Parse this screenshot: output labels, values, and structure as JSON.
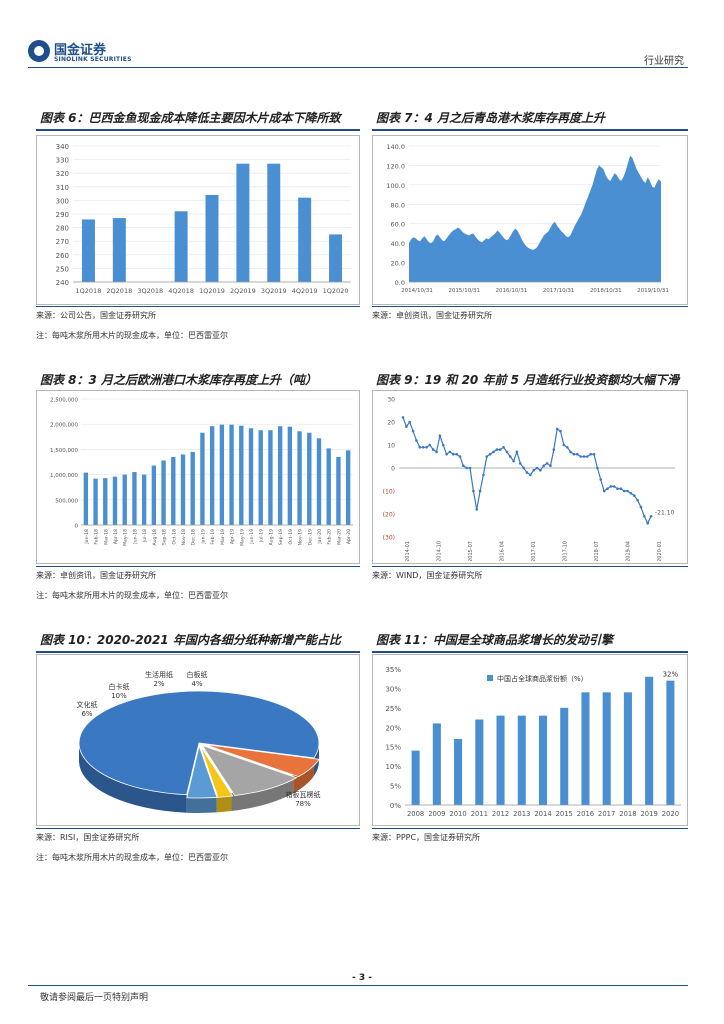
{
  "header": {
    "brand_cn": "国金证券",
    "brand_en": "SINOLINK SECURITIES",
    "section": "行业研究"
  },
  "page_number": "- 3 -",
  "footer": "敬请参阅最后一页特别声明",
  "colors": {
    "bar": "#4a8fd2",
    "accent": "#1f4e8c"
  },
  "panels": {
    "p6": {
      "title": "图表 6：巴西金鱼现金成本降低主要因木片成本下降所致",
      "source": "来源：公司公告，国金证券研究所",
      "note": "注：每吨木浆所用木片的现金成本，单位：巴西雷亚尔"
    },
    "p7": {
      "title": "图表 7：4 月之后青岛港木浆库存再度上升",
      "source": "来源：卓创资讯，国金证券研究所"
    },
    "p8": {
      "title": "图表 8：3 月之后欧洲港口木浆库存再度上升（吨）",
      "source": "来源：卓创资讯，国金证券研究所",
      "note": "注：每吨木浆所用木片的现金成本，单位：巴西雷亚尔"
    },
    "p9": {
      "title": "图表 9：19 和 20 年前 5 月造纸行业投资额均大幅下滑",
      "source": "来源：WIND，国金证券研究所"
    },
    "p10": {
      "title": "图表 10：2020-2021 年国内各细分纸种新增产能占比",
      "source": "来源：RISI，国金证券研究所",
      "note": "注：每吨木浆所用木片的现金成本，单位：巴西雷亚尔"
    },
    "p11": {
      "title": "图表 11：中国是全球商品浆增长的发动引擎",
      "source": "来源：PPPC，国金证券研究所"
    }
  },
  "chart_data": [
    {
      "id": "chart6",
      "type": "bar",
      "categories": [
        "1Q2018",
        "2Q2018",
        "3Q2018",
        "4Q2018",
        "1Q2019",
        "2Q2019",
        "3Q2019",
        "4Q2019",
        "1Q2020"
      ],
      "values": [
        286,
        287,
        null,
        292,
        304,
        327,
        327,
        302,
        275
      ],
      "ylim": [
        240,
        340
      ],
      "yticks": [
        "240",
        "250",
        "260",
        "270",
        "280",
        "290",
        "300",
        "310",
        "320",
        "330",
        "340"
      ]
    },
    {
      "id": "chart7",
      "type": "area",
      "ylim": [
        0,
        140
      ],
      "yticks": [
        "0.0",
        "20.0",
        "40.0",
        "60.0",
        "80.0",
        "100.0",
        "120.0",
        "140.0"
      ],
      "xlabels": [
        "2014/10/31",
        "2015/10/31",
        "2016/10/31",
        "2017/10/31",
        "2018/10/31",
        "2019/10/31"
      ],
      "values": [
        40,
        44,
        46,
        45,
        43,
        42,
        45,
        47,
        44,
        41,
        40,
        42,
        47,
        49,
        46,
        43,
        42,
        45,
        48,
        51,
        53,
        54,
        56,
        55,
        52,
        50,
        49,
        48,
        49,
        50,
        47,
        44,
        42,
        41,
        43,
        45,
        44,
        46,
        48,
        50,
        53,
        51,
        48,
        45,
        43,
        44,
        48,
        52,
        55,
        53,
        49,
        44,
        40,
        37,
        35,
        34,
        33,
        34,
        36,
        40,
        44,
        48,
        50,
        52,
        56,
        60,
        62,
        58,
        55,
        52,
        50,
        47,
        46,
        48,
        53,
        58,
        62,
        66,
        70,
        76,
        82,
        88,
        94,
        100,
        108,
        116,
        120,
        118,
        116,
        110,
        106,
        104,
        108,
        112,
        110,
        106,
        104,
        108,
        114,
        122,
        130,
        128,
        122,
        116,
        112,
        108,
        104,
        102,
        108,
        104,
        98,
        97,
        102,
        106,
        103
      ]
    },
    {
      "id": "chart8",
      "type": "bar",
      "ylim": [
        0,
        2500000
      ],
      "yticks": [
        "0",
        "500,000",
        "1,000,000",
        "1,500,000",
        "2,000,000",
        "2,500,000"
      ],
      "categories": [
        "Jan-18",
        "Feb-18",
        "Mar-18",
        "Apr-18",
        "May-18",
        "Jun-18",
        "Jul-18",
        "Aug-18",
        "Sep-18",
        "Oct-18",
        "Nov-18",
        "Dec-18",
        "Jan-19",
        "Feb-19",
        "Mar-19",
        "Apr-19",
        "May-19",
        "Jun-19",
        "Jul-19",
        "Aug-19",
        "Sep-19",
        "Oct-19",
        "Nov-19",
        "Dec-19",
        "Jan-20",
        "Feb-20",
        "Mar-20",
        "Apr-20"
      ],
      "values": [
        1040000,
        920000,
        930000,
        960000,
        1000000,
        1050000,
        1000000,
        1180000,
        1280000,
        1350000,
        1400000,
        1450000,
        1830000,
        1960000,
        1990000,
        1990000,
        1970000,
        1920000,
        1880000,
        1880000,
        1960000,
        1950000,
        1860000,
        1830000,
        1720000,
        1520000,
        1350000,
        1480000
      ]
    },
    {
      "id": "chart9",
      "type": "line",
      "ylim": [
        -30,
        30
      ],
      "yticks": [
        "30",
        "20",
        "10",
        "0",
        "(10)",
        "(20)",
        "(30)"
      ],
      "xlabels": [
        "2014-01",
        "2014-10",
        "2015-07",
        "2016-04",
        "2017-01",
        "2017-10",
        "2018-07",
        "2019-04",
        "2020-01"
      ],
      "end_label": "-21.10",
      "values": [
        22,
        18,
        20,
        16,
        12,
        9,
        9,
        9,
        10,
        8,
        7,
        14,
        10,
        6,
        7,
        6,
        6,
        5,
        1,
        0,
        0,
        -10,
        -18,
        -10,
        -3,
        5,
        6,
        7,
        8,
        8,
        9,
        7,
        5,
        3,
        7,
        2,
        0,
        -2,
        -3,
        -1,
        0,
        -1,
        1,
        2,
        1,
        8,
        17,
        16,
        10,
        9,
        7,
        6,
        6,
        5,
        5,
        5,
        6,
        6,
        0,
        -5,
        -10,
        -9,
        -8,
        -8,
        -9,
        -9,
        -10,
        -10,
        -11,
        -12,
        -14,
        -17,
        -21,
        -24,
        -21
      ]
    },
    {
      "id": "chart10",
      "type": "pie",
      "labels": [
        "箱板瓦楞纸",
        "文化纸",
        "白卡纸",
        "生活用纸",
        "白板纸"
      ],
      "values": [
        78,
        6,
        10,
        2,
        4
      ],
      "pct_labels": [
        "78%",
        "6%",
        "10%",
        "2%",
        "4%"
      ],
      "colors": [
        "#3a78c2",
        "#e8743b",
        "#a5a5a5",
        "#f5c518",
        "#5b9bd5"
      ]
    },
    {
      "id": "chart11",
      "type": "bar",
      "legend": "中国占全球商品浆份额（%）",
      "categories": [
        "2008",
        "2009",
        "2010",
        "2011",
        "2012",
        "2013",
        "2014",
        "2015",
        "2016",
        "2017",
        "2018",
        "2019",
        "2020"
      ],
      "values": [
        14,
        21,
        17,
        22,
        23,
        23,
        23,
        25,
        29,
        29,
        29,
        33,
        32
      ],
      "ylim": [
        0,
        35
      ],
      "yticks": [
        "0%",
        "5%",
        "10%",
        "15%",
        "20%",
        "25%",
        "30%",
        "35%"
      ],
      "end_label": "32%"
    }
  ]
}
